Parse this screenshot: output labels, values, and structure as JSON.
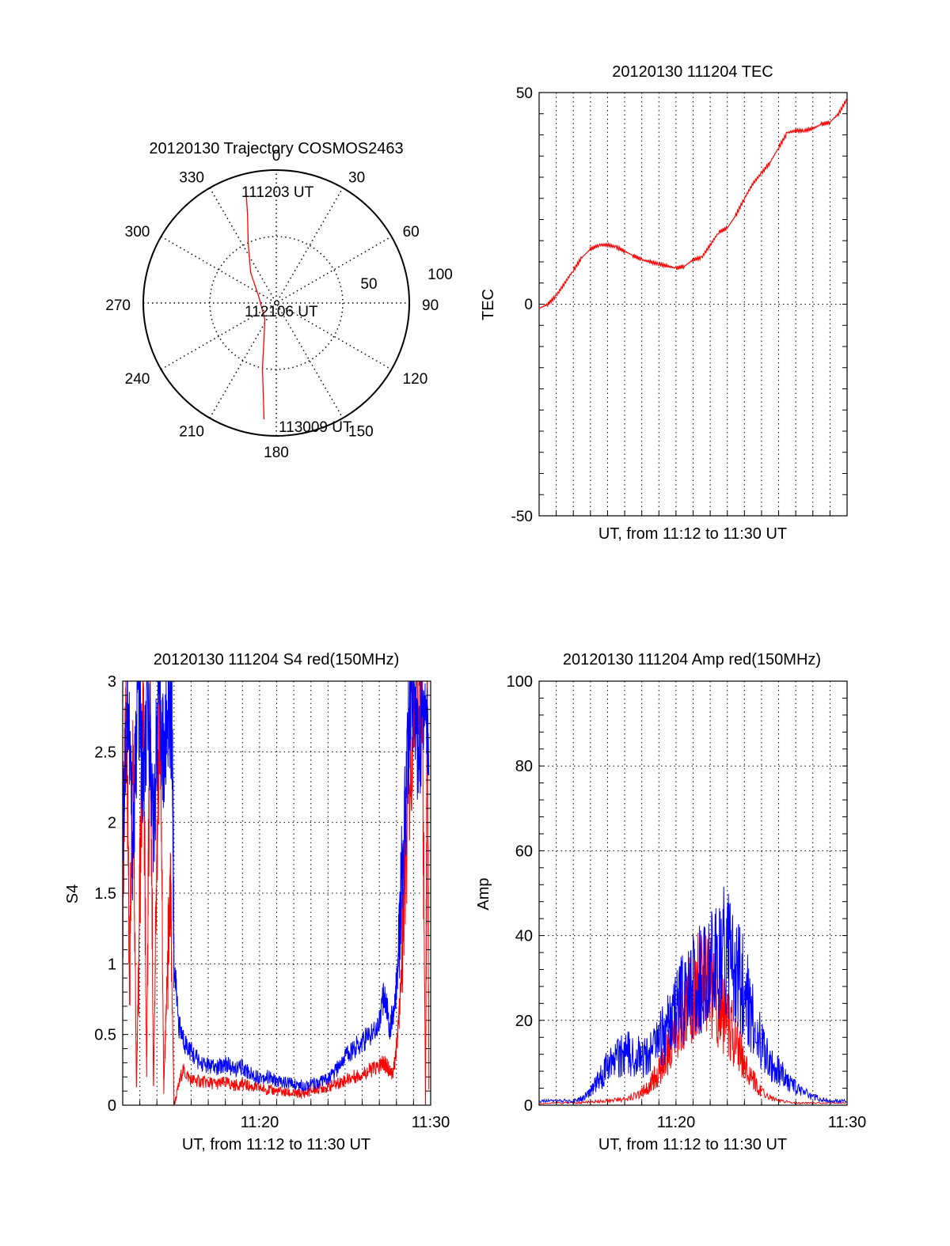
{
  "colors": {
    "red": "#ff0000",
    "blue": "#0000ff",
    "axis": "#000000",
    "grid": "#000000"
  },
  "chart_data": [
    {
      "id": "trajectory",
      "type": "polar",
      "title": "20120130 Trajectory COSMOS2463",
      "azimuth_labels": [
        "0",
        "30",
        "60",
        "90",
        "120",
        "150",
        "180",
        "210",
        "240",
        "270",
        "300",
        "330"
      ],
      "radial_ring_labels": [
        "50",
        "100"
      ],
      "grid": true,
      "track": {
        "color": "red",
        "points": [
          {
            "az": 345,
            "r": 88
          },
          {
            "az": 342,
            "r": 70
          },
          {
            "az": 335,
            "r": 50
          },
          {
            "az": 320,
            "r": 30
          },
          {
            "az": 290,
            "r": 14
          },
          {
            "az": 215,
            "r": 15
          },
          {
            "az": 198,
            "r": 30
          },
          {
            "az": 192,
            "r": 50
          },
          {
            "az": 188,
            "r": 70
          },
          {
            "az": 186,
            "r": 88
          }
        ]
      },
      "annotations": [
        {
          "text": "111203 UT",
          "at": "start"
        },
        {
          "text": "112106 UT",
          "at": "center"
        },
        {
          "text": "113009 UT",
          "at": "end"
        }
      ]
    },
    {
      "id": "tec",
      "type": "line",
      "title": "20120130 111204 TEC",
      "xlabel": "UT, from 11:12 to 11:30 UT",
      "ylabel": "TEC",
      "xlim_min": [
        0,
        18
      ],
      "ylim": [
        -50,
        50
      ],
      "yticks": [
        "-50",
        "0",
        "50"
      ],
      "grid": true,
      "series": [
        {
          "color": "red",
          "x": [
            0,
            0.5,
            1,
            1.5,
            2,
            2.5,
            3,
            3.5,
            4,
            4.5,
            5,
            5.5,
            6,
            6.5,
            7,
            7.5,
            8,
            8.5,
            9,
            9.5,
            10,
            10.5,
            11,
            11.5,
            12,
            12.5,
            13,
            13.5,
            14,
            14.5,
            15,
            15.5,
            16,
            16.5,
            17,
            17.5,
            18
          ],
          "y": [
            -1,
            0,
            2,
            5,
            8,
            11,
            13,
            14,
            14,
            13.5,
            12.5,
            11.5,
            10.5,
            10,
            9.5,
            9,
            8.5,
            9,
            10.5,
            11,
            14,
            17,
            18,
            21,
            25,
            28.5,
            31,
            33.5,
            37,
            40.5,
            41,
            41,
            41.5,
            42.5,
            43,
            45,
            48.5
          ]
        }
      ]
    },
    {
      "id": "s4",
      "type": "line",
      "title": "20120130 111204 S4 red(150MHz)",
      "xlabel": "UT, from 11:12 to 11:30 UT",
      "ylabel": "S4",
      "xticks": [
        "11:20",
        "11:30"
      ],
      "yticks": [
        "0",
        "0.5",
        "1",
        "1.5",
        "2",
        "2.5",
        "3"
      ],
      "ylim": [
        0,
        3
      ],
      "grid": true,
      "series": [
        {
          "color": "red",
          "x": [
            0,
            0.2,
            0.4,
            0.6,
            0.8,
            1.0,
            1.2,
            1.4,
            1.6,
            1.8,
            2.0,
            2.2,
            2.4,
            2.6,
            2.8,
            3.0,
            3.5,
            4.0,
            4.5,
            5,
            5.5,
            6,
            6.5,
            7,
            7.5,
            8,
            8.5,
            9,
            9.5,
            10,
            10.5,
            11,
            11.5,
            12,
            12.5,
            13,
            13.5,
            14,
            14.5,
            15,
            15.2,
            15.4,
            15.6,
            15.8,
            16,
            16.2,
            16.5,
            17,
            17.5,
            17.7,
            17.8,
            17.9
          ],
          "y": [
            1.3,
            3.0,
            0.8,
            2.8,
            0.1,
            1.5,
            2.9,
            0.2,
            3.0,
            0.1,
            1.8,
            2.9,
            0.1,
            0.9,
            1.4,
            0.0,
            0.25,
            0.18,
            0.17,
            0.16,
            0.15,
            0.16,
            0.14,
            0.15,
            0.13,
            0.12,
            0.11,
            0.1,
            0.09,
            0.08,
            0.08,
            0.1,
            0.12,
            0.13,
            0.15,
            0.18,
            0.2,
            0.22,
            0.25,
            0.27,
            0.3,
            0.28,
            0.25,
            0.22,
            0.4,
            0.7,
            1.5,
            2.8,
            3.0,
            0.0,
            3.0,
            0.0
          ]
        },
        {
          "color": "blue",
          "x": [
            0,
            0.3,
            0.6,
            0.9,
            1.2,
            1.5,
            1.8,
            2.1,
            2.4,
            2.7,
            2.9,
            3.0,
            3.3,
            3.6,
            4.0,
            4.5,
            5,
            5.5,
            6,
            6.5,
            7,
            7.5,
            8,
            8.5,
            9,
            9.5,
            10,
            10.5,
            11,
            11.5,
            12,
            12.5,
            13,
            13.5,
            14,
            14.5,
            15,
            15.3,
            15.6,
            15.9,
            16.1,
            16.4,
            16.7,
            17,
            17.3,
            17.6,
            17.9
          ],
          "y": [
            2.0,
            2.9,
            1.8,
            3.0,
            2.2,
            2.9,
            1.9,
            3.0,
            2.4,
            2.9,
            2.6,
            1.0,
            0.55,
            0.45,
            0.38,
            0.3,
            0.28,
            0.26,
            0.3,
            0.25,
            0.27,
            0.22,
            0.2,
            0.2,
            0.17,
            0.16,
            0.15,
            0.14,
            0.15,
            0.16,
            0.18,
            0.25,
            0.35,
            0.4,
            0.45,
            0.5,
            0.6,
            0.8,
            0.55,
            0.7,
            1.0,
            1.8,
            2.6,
            3.0,
            2.4,
            2.9,
            2.6
          ]
        }
      ]
    },
    {
      "id": "amp",
      "type": "line",
      "title": "20120130 111204 Amp red(150MHz)",
      "xlabel": "UT, from 11:12 to 11:30 UT",
      "ylabel": "Amp",
      "xticks": [
        "11:20",
        "11:30"
      ],
      "yticks": [
        "0",
        "20",
        "40",
        "60",
        "80",
        "100"
      ],
      "ylim": [
        0,
        100
      ],
      "grid": true,
      "series": [
        {
          "color": "red",
          "x": [
            0,
            2,
            3,
            4,
            5,
            6,
            6.5,
            7,
            7.5,
            8,
            8.5,
            9,
            9.5,
            10,
            10.5,
            11,
            11.5,
            12,
            12.5,
            13,
            14,
            15,
            16,
            18
          ],
          "y": [
            0.5,
            0.5,
            0.8,
            1.0,
            1.5,
            3,
            5,
            8,
            12,
            17,
            22,
            26,
            30,
            28,
            24,
            20,
            15,
            10,
            6,
            3,
            1,
            0.5,
            0.5,
            0.5
          ]
        },
        {
          "color": "blue",
          "x": [
            0,
            1,
            2,
            2.5,
            3,
            3.5,
            4,
            4.5,
            5,
            5.5,
            6,
            6.5,
            7,
            7.5,
            8,
            8.5,
            9,
            9.5,
            10,
            10.5,
            11,
            11.5,
            12,
            12.5,
            13,
            13.5,
            14,
            14.5,
            15,
            16,
            17,
            18
          ],
          "y": [
            1,
            1,
            1,
            1.5,
            3,
            6,
            9,
            11,
            12,
            12,
            11,
            12,
            15,
            18,
            22,
            26,
            28,
            30,
            32,
            35,
            36,
            33,
            28,
            20,
            14,
            10,
            8,
            6,
            4,
            2,
            1,
            1
          ]
        }
      ]
    }
  ]
}
